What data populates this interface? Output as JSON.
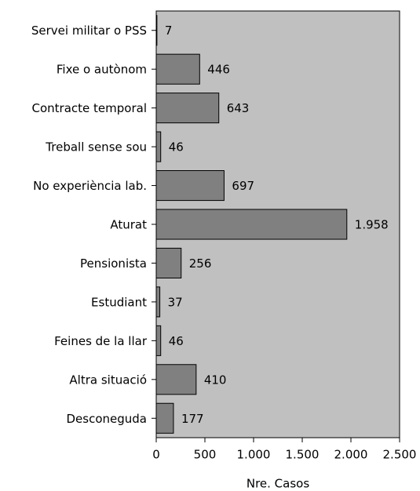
{
  "chart_data": {
    "type": "barh",
    "xlabel": "Nre. Casos",
    "categories": [
      "Servei militar o PSS",
      "Fixe o autònom",
      "Contracte temporal",
      "Treball sense sou",
      "No experiència lab.",
      "Aturat",
      "Pensionista",
      "Estudiant",
      "Feines de la llar",
      "Altra situació",
      "Desconeguda"
    ],
    "values": [
      7,
      446,
      643,
      46,
      697,
      1958,
      256,
      37,
      46,
      410,
      177
    ],
    "value_labels": [
      "7",
      "446",
      "643",
      "46",
      "697",
      "1.958",
      "256",
      "37",
      "46",
      "410",
      "177"
    ],
    "color": "#808080",
    "background": "#c0c0c0",
    "xlim": [
      0,
      2500
    ],
    "xticks": [
      0,
      500,
      {
        "value": 1000,
        "label": "1.000"
      },
      {
        "value": 1500,
        "label": "1.500"
      },
      {
        "value": 2000,
        "label": "2.000"
      },
      {
        "value": 2500,
        "label": "2.500"
      }
    ]
  }
}
